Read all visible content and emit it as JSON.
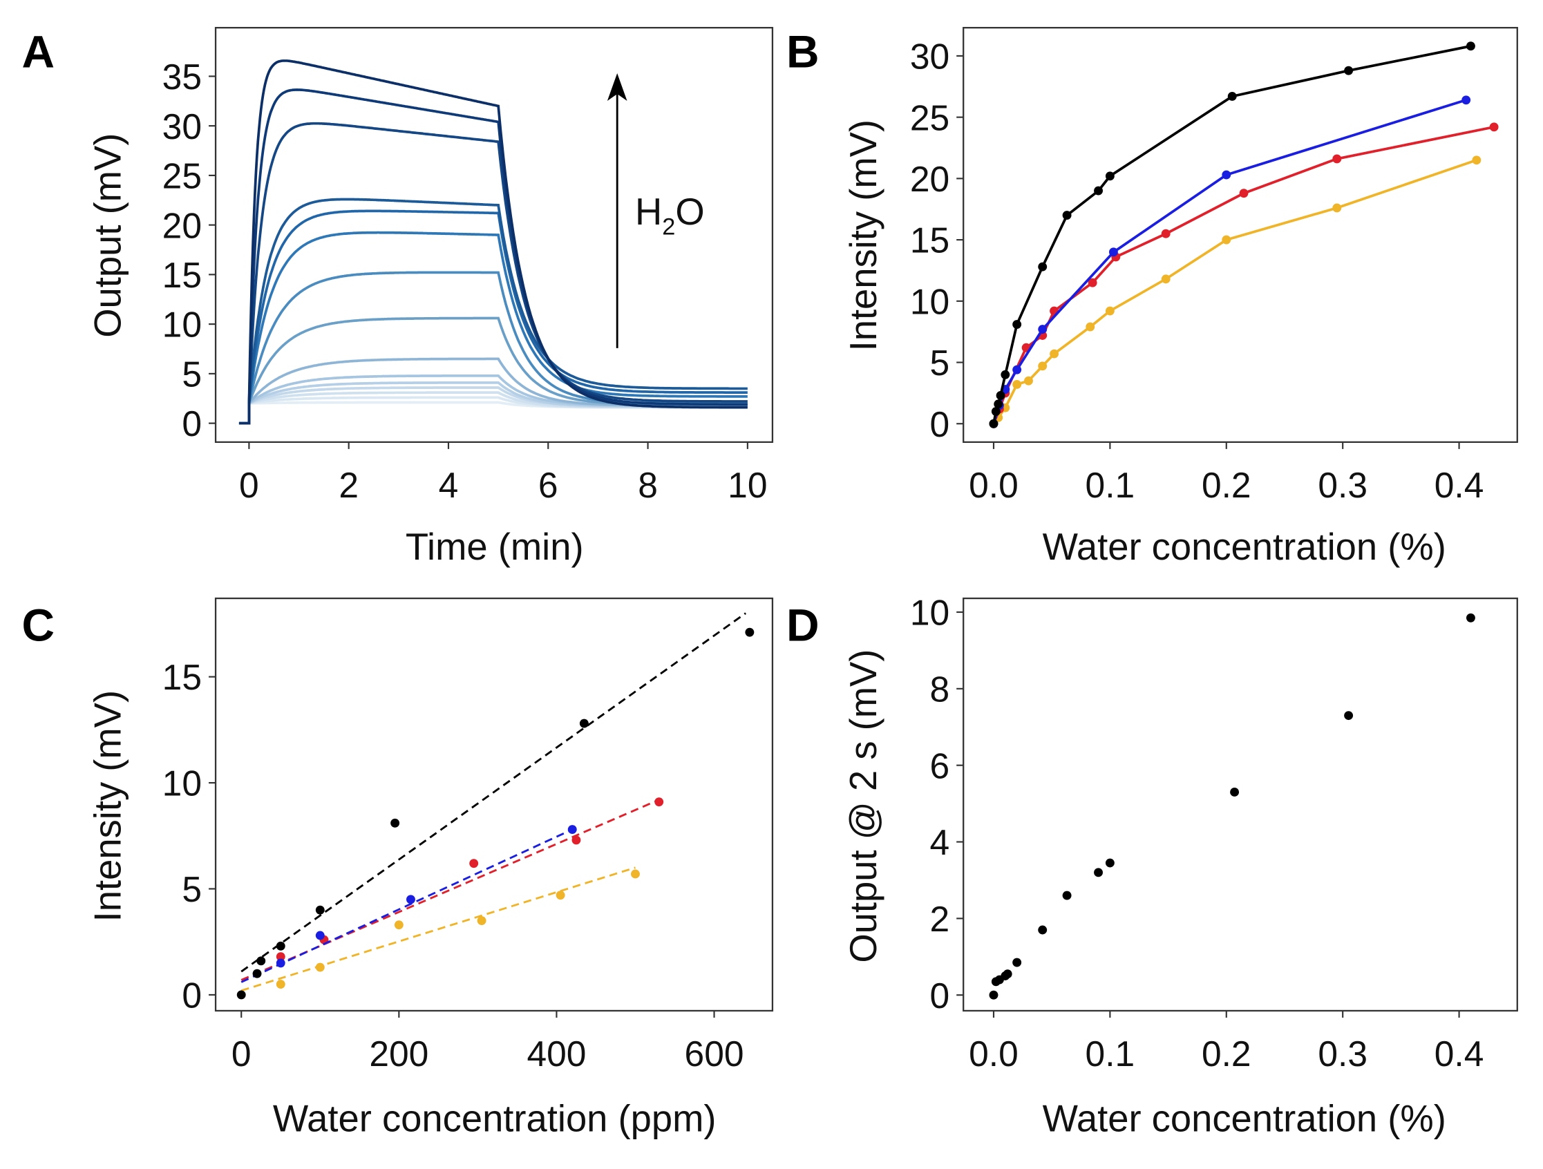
{
  "chart_data": [
    {
      "panel": "A",
      "type": "line",
      "xlabel": "Time (min)",
      "ylabel": "Output (mV)",
      "xlim": [
        -0.67,
        10.5
      ],
      "ylim": [
        -1.9,
        39.9
      ],
      "xticks": [
        0,
        2,
        4,
        6,
        8,
        10
      ],
      "yticks": [
        0,
        5,
        10,
        15,
        20,
        25,
        30,
        35
      ],
      "annotation": {
        "text": "H",
        "sub": "2",
        "text2": "O",
        "arrow": "upward, increasing water"
      },
      "series_model": "step at t=0, exposure until t=5 min, recovery to t=10 min",
      "series": [
        {
          "peak": 37.5,
          "at_5min": 32.0,
          "at_10min": 1.6,
          "rise_tau_min": 0.13,
          "color": "#0b2f66"
        },
        {
          "peak": 34.6,
          "at_5min": 30.4,
          "at_10min": 1.9,
          "rise_tau_min": 0.18,
          "color": "#0f3a78"
        },
        {
          "peak": 31.1,
          "at_5min": 28.4,
          "at_10min": 2.2,
          "rise_tau_min": 0.25,
          "color": "#154784"
        },
        {
          "peak": 23.1,
          "at_5min": 22.0,
          "at_10min": 3.5,
          "rise_tau_min": 0.35,
          "color": "#1d5a98"
        },
        {
          "peak": 21.7,
          "at_5min": 21.2,
          "at_10min": 3.1,
          "rise_tau_min": 0.4,
          "color": "#2166a8"
        },
        {
          "peak": 19.6,
          "at_5min": 19.0,
          "at_10min": 2.7,
          "rise_tau_min": 0.45,
          "color": "#2f78b8"
        },
        {
          "peak": 15.3,
          "at_5min": 15.2,
          "at_10min": 2.0,
          "rise_tau_min": 0.55,
          "color": "#4a8cbf"
        },
        {
          "peak": 10.6,
          "at_5min": 10.6,
          "at_10min": 1.9,
          "rise_tau_min": 0.6,
          "color": "#6a9fc8"
        },
        {
          "peak": 6.5,
          "at_5min": 6.5,
          "at_10min": 1.8,
          "rise_tau_min": 0.7,
          "color": "#8fb5d6"
        },
        {
          "peak": 4.8,
          "at_5min": 4.8,
          "at_10min": 1.8,
          "rise_tau_min": 0.7,
          "color": "#a6c5e0"
        },
        {
          "peak": 4.1,
          "at_5min": 4.1,
          "at_10min": 1.7,
          "rise_tau_min": 0.7,
          "color": "#b5cfe6"
        },
        {
          "peak": 3.6,
          "at_5min": 3.6,
          "at_10min": 1.7,
          "rise_tau_min": 0.7,
          "color": "#c3d8eb"
        },
        {
          "peak": 3.1,
          "at_5min": 3.1,
          "at_10min": 1.6,
          "rise_tau_min": 0.7,
          "color": "#cfe0ef"
        },
        {
          "peak": 2.6,
          "at_5min": 2.6,
          "at_10min": 1.6,
          "rise_tau_min": 0.7,
          "color": "#d9e7f3"
        },
        {
          "peak": 2.1,
          "at_5min": 2.1,
          "at_10min": 1.6,
          "rise_tau_min": 0.7,
          "color": "#e2edf6"
        }
      ]
    },
    {
      "panel": "B",
      "type": "line",
      "xlabel": "Water concentration (%)",
      "ylabel": "Intensity (mV)",
      "xlim": [
        -0.026,
        0.45
      ],
      "ylim": [
        -1.5,
        32.3
      ],
      "xticks": [
        0.0,
        0.1,
        0.2,
        0.3,
        0.4
      ],
      "xtick_labels": [
        "0.0",
        "0.1",
        "0.2",
        "0.3",
        "0.4"
      ],
      "yticks": [
        0,
        5,
        10,
        15,
        20,
        25,
        30
      ],
      "series": [
        {
          "color": "#f0b429",
          "x": [
            0,
            0.004,
            0.01,
            0.02,
            0.03,
            0.042,
            0.052,
            0.083,
            0.1,
            0.148,
            0.2,
            0.295,
            0.415
          ],
          "y": [
            0,
            0.5,
            1.3,
            3.2,
            3.5,
            4.7,
            5.7,
            7.9,
            9.2,
            11.8,
            15,
            17.6,
            21.5
          ]
        },
        {
          "color": "#e0202a",
          "x": [
            0,
            0.005,
            0.01,
            0.028,
            0.042,
            0.052,
            0.085,
            0.105,
            0.148,
            0.215,
            0.295,
            0.43
          ],
          "y": [
            0,
            1.2,
            2.5,
            6.2,
            7.2,
            9.2,
            11.5,
            13.6,
            15.5,
            18.8,
            21.6,
            24.2
          ]
        },
        {
          "color": "#1a1ee0",
          "x": [
            0,
            0.005,
            0.01,
            0.02,
            0.042,
            0.103,
            0.2,
            0.406
          ],
          "y": [
            0,
            1.5,
            2.8,
            4.4,
            7.7,
            14,
            20.3,
            26.4
          ]
        },
        {
          "color": "#000000",
          "x": [
            0,
            0.002,
            0.004,
            0.006,
            0.01,
            0.02,
            0.042,
            0.063,
            0.09,
            0.1,
            0.205,
            0.305,
            0.41
          ],
          "y": [
            0,
            1,
            1.6,
            2.3,
            4,
            8.1,
            12.8,
            17,
            19,
            20.2,
            26.7,
            28.8,
            30.8
          ]
        }
      ]
    },
    {
      "panel": "C",
      "type": "scatter",
      "xlabel": "Water concentration (ppm)",
      "ylabel": "Intensity (mV)",
      "xlim": [
        -32.6,
        674
      ],
      "ylim": [
        -0.75,
        18.7
      ],
      "xticks": [
        0,
        200,
        400,
        600
      ],
      "yticks": [
        0,
        5,
        10,
        15
      ],
      "series": [
        {
          "color": "#f0b429",
          "x": [
            50,
            100,
            200,
            305,
            405,
            500
          ],
          "y": [
            0.5,
            1.3,
            3.3,
            3.5,
            4.7,
            5.7
          ],
          "fit": {
            "x": [
              0,
              500
            ],
            "y": [
              0.2,
              6.0
            ]
          }
        },
        {
          "color": "#e0202a",
          "x": [
            50,
            105,
            295,
            425,
            530
          ],
          "y": [
            1.8,
            2.6,
            6.2,
            7.3,
            9.1
          ],
          "fit": {
            "x": [
              0,
              530
            ],
            "y": [
              0.7,
              9.2
            ]
          }
        },
        {
          "color": "#1a1ee0",
          "x": [
            50,
            100,
            215,
            420
          ],
          "y": [
            1.5,
            2.8,
            4.5,
            7.8
          ],
          "fit": {
            "x": [
              0,
              420
            ],
            "y": [
              0.6,
              7.8
            ]
          }
        },
        {
          "color": "#000000",
          "x": [
            0,
            20,
            25,
            50,
            100,
            195,
            435,
            645
          ],
          "y": [
            0,
            1.0,
            1.6,
            2.3,
            4,
            8.1,
            12.8,
            17.1
          ],
          "fit": {
            "x": [
              0,
              640
            ],
            "y": [
              1.1,
              18.0
            ]
          }
        }
      ]
    },
    {
      "panel": "D",
      "type": "scatter",
      "xlabel": "Water concentration (%)",
      "ylabel": "Output @ 2 s (mV)",
      "xlim": [
        -0.026,
        0.45
      ],
      "ylim": [
        -0.41,
        10.36
      ],
      "xticks": [
        0.0,
        0.1,
        0.2,
        0.3,
        0.4
      ],
      "xtick_labels": [
        "0.0",
        "0.1",
        "0.2",
        "0.3",
        "0.4"
      ],
      "yticks": [
        0,
        2,
        4,
        6,
        8,
        10
      ],
      "series": [
        {
          "color": "#000000",
          "x": [
            0,
            0.002,
            0.005,
            0.01,
            0.012,
            0.02,
            0.042,
            0.063,
            0.09,
            0.1,
            0.207,
            0.305,
            0.41
          ],
          "y": [
            0,
            0.35,
            0.4,
            0.5,
            0.55,
            0.85,
            1.7,
            2.6,
            3.2,
            3.45,
            5.3,
            7.3,
            9.85
          ]
        }
      ]
    }
  ]
}
